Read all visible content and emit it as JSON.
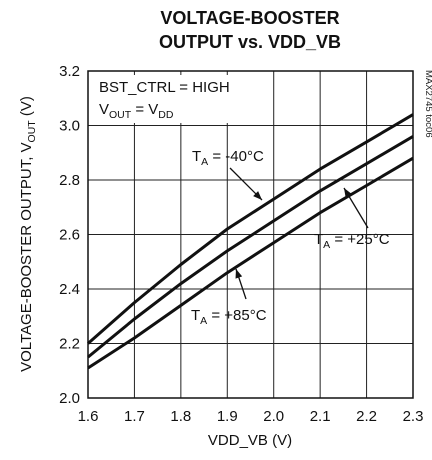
{
  "chart_data": {
    "type": "line",
    "title_line1": "VOLTAGE-BOOSTER",
    "title_line2": "OUTPUT vs. VDD_VB",
    "xlabel": "VDD_VB (V)",
    "ylabel_main": "VOLTAGE-BOOSTER OUTPUT, V",
    "ylabel_sub": "OUT",
    "ylabel_unit": " (V)",
    "xlim": [
      1.6,
      2.3
    ],
    "ylim": [
      2.0,
      3.2
    ],
    "x_ticks": [
      "1.6",
      "1.7",
      "1.8",
      "1.9",
      "2.0",
      "2.1",
      "2.2",
      "2.3"
    ],
    "y_ticks": [
      "2.0",
      "2.2",
      "2.4",
      "2.6",
      "2.8",
      "3.0",
      "3.2"
    ],
    "grid": true,
    "figure_code": "MAX2745 toc06",
    "conditions": {
      "line1": "BST_CTRL = HIGH",
      "line2_v": "V",
      "line2_sub": "OUT",
      "line2_eq": " = V",
      "line2_sub2": "DD"
    },
    "series": [
      {
        "ann_t": "T",
        "ann_sub": "A",
        "ann_val": " = -40°C",
        "x": [
          1.6,
          1.7,
          1.8,
          1.9,
          2.0,
          2.1,
          2.2,
          2.3
        ],
        "y": [
          2.2,
          2.35,
          2.49,
          2.62,
          2.73,
          2.84,
          2.94,
          3.04
        ]
      },
      {
        "ann_t": "T",
        "ann_sub": "A",
        "ann_val": " = +25°C",
        "x": [
          1.6,
          1.7,
          1.8,
          1.9,
          2.0,
          2.1,
          2.2,
          2.3
        ],
        "y": [
          2.15,
          2.29,
          2.42,
          2.54,
          2.65,
          2.76,
          2.86,
          2.96
        ]
      },
      {
        "ann_t": "T",
        "ann_sub": "A",
        "ann_val": " = +85°C",
        "x": [
          1.6,
          1.7,
          1.8,
          1.9,
          2.0,
          2.1,
          2.2,
          2.3
        ],
        "y": [
          2.11,
          2.22,
          2.34,
          2.46,
          2.57,
          2.68,
          2.78,
          2.88
        ]
      }
    ]
  }
}
